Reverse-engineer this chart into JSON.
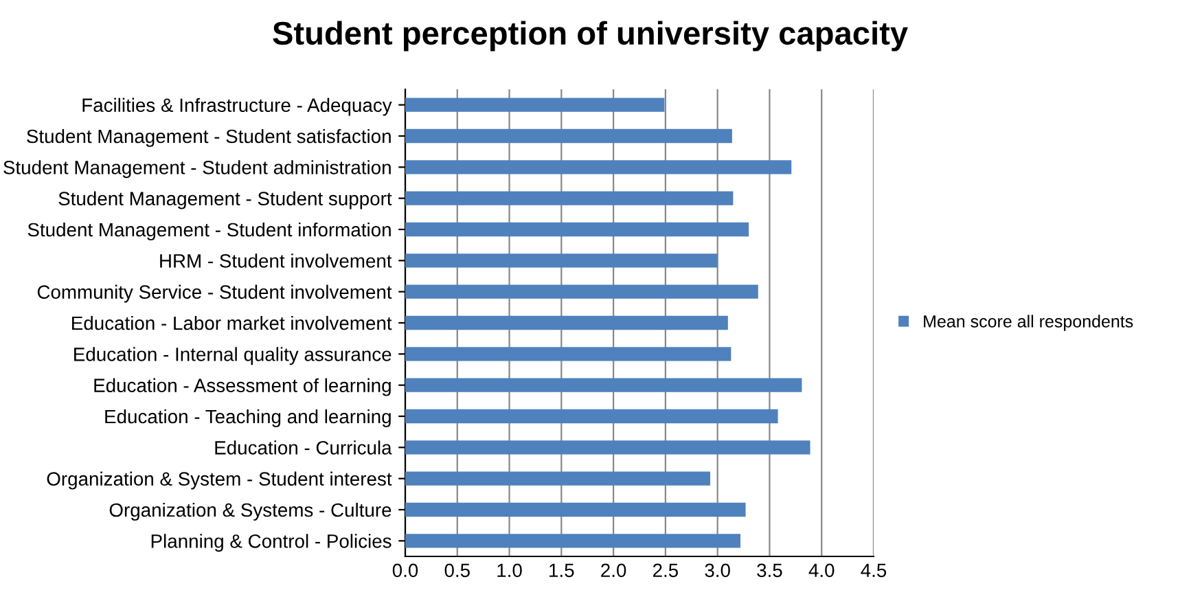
{
  "chart_data": {
    "type": "bar",
    "orientation": "horizontal",
    "title": "Student perception of university capacity",
    "categories": [
      "Facilities & Infrastructure - Adequacy",
      "Student Management - Student satisfaction",
      "Student Management - Student administration",
      "Student Management - Student support",
      "Student Management - Student information",
      "HRM - Student involvement",
      "Community Service - Student involvement",
      "Education - Labor market involvement",
      "Education - Internal quality assurance",
      "Education - Assessment of learning",
      "Education - Teaching and learning",
      "Education - Curricula",
      "Organization & System - Student interest",
      "Organization & Systems - Culture",
      "Planning & Control - Policies"
    ],
    "series": [
      {
        "name": "Mean score all respondents",
        "color": "#4f81bd",
        "values": [
          2.49,
          3.14,
          3.71,
          3.15,
          3.3,
          3.0,
          3.39,
          3.1,
          3.13,
          3.81,
          3.58,
          3.89,
          2.93,
          3.27,
          3.22
        ]
      }
    ],
    "xlim": [
      0,
      4.5
    ],
    "xticks": [
      {
        "value": 0,
        "label": "0.0"
      },
      {
        "value": 0.5,
        "label": "0.5"
      },
      {
        "value": 1,
        "label": "1.0"
      },
      {
        "value": 1.5,
        "label": "1.5"
      },
      {
        "value": 2,
        "label": "2.0"
      },
      {
        "value": 2.5,
        "label": "2.5"
      },
      {
        "value": 3,
        "label": "3.0"
      },
      {
        "value": 3.5,
        "label": "3.5"
      },
      {
        "value": 4,
        "label": "4.0"
      },
      {
        "value": 4.5,
        "label": "4.5"
      }
    ],
    "grid": "x",
    "legend": "right"
  }
}
